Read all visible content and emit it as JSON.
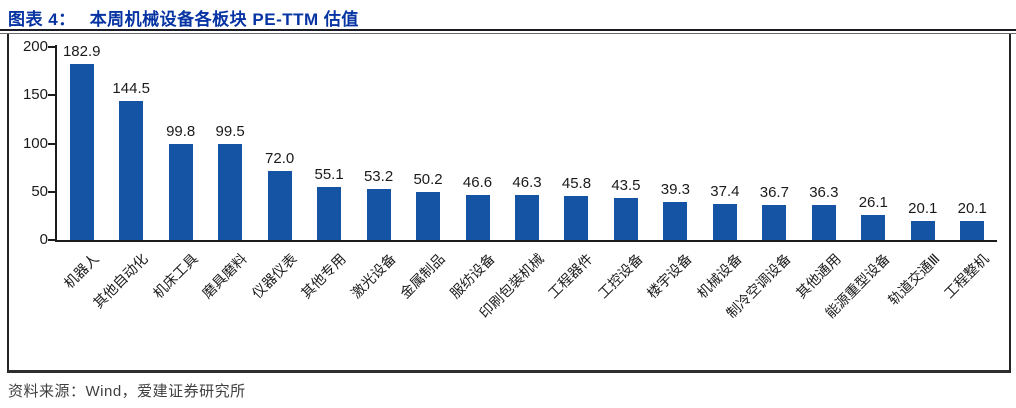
{
  "header": {
    "figure_label": "图表 4：",
    "figure_title": "本周机械设备各板块 PE-TTM 估值"
  },
  "footer": {
    "source": "资料来源：Wind，爱建证券研究所"
  },
  "colors": {
    "title_blue": "#0734A3",
    "bar_blue": "#1553A5",
    "axis_black": "#1c1c1c",
    "rule_dark": "#1b1b26",
    "footer_gray": "#404040"
  },
  "chart_data": {
    "type": "bar",
    "title": "本周机械设备各板块 PE-TTM 估值",
    "xlabel": "",
    "ylabel": "",
    "categories": [
      "机器人",
      "其他自动化",
      "机床工具",
      "磨具磨料",
      "仪器仪表",
      "其他专用",
      "激光设备",
      "金属制品",
      "服纺设备",
      "印刷包装机械",
      "工程器件",
      "工控设备",
      "楼宇设备",
      "机械设备",
      "制冷空调设备",
      "其他通用",
      "能源重型设备",
      "轨道交通Ⅲ",
      "工程整机"
    ],
    "values": [
      182.9,
      144.5,
      99.8,
      99.5,
      72.0,
      55.1,
      53.2,
      50.2,
      46.6,
      46.3,
      45.8,
      43.5,
      39.3,
      37.4,
      36.7,
      36.3,
      26.1,
      20.1,
      20.1
    ],
    "y_ticks": [
      0,
      50,
      100,
      150,
      200
    ],
    "ylim": [
      0,
      200
    ],
    "bar_color": "#1553A5",
    "value_label_decimals": 1,
    "grid": false,
    "legend": false,
    "category_label_rotation": -45
  }
}
